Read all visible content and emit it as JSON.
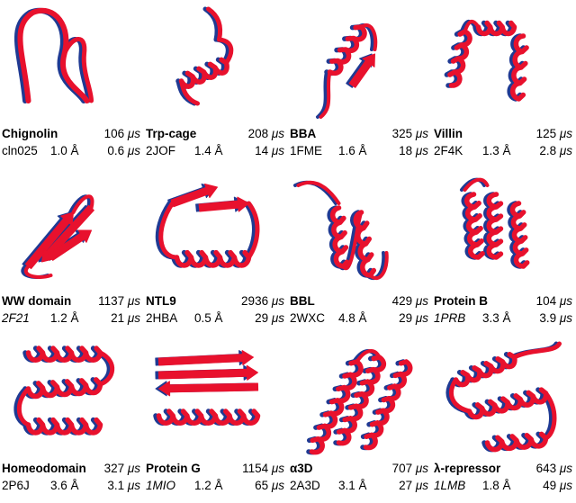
{
  "colors": {
    "simulation": "#e8112d",
    "experiment": "#1f3a93"
  },
  "proteins": [
    {
      "name": "Chignolin",
      "time": "106",
      "pdb": "cln025",
      "pdb_italic": false,
      "rmsd": "1.0 Å",
      "fold": "0.6"
    },
    {
      "name": "Trp-cage",
      "time": "208",
      "pdb": "2JOF",
      "pdb_italic": false,
      "rmsd": "1.4 Å",
      "fold": "14"
    },
    {
      "name": "BBA",
      "time": "325",
      "pdb": "1FME",
      "pdb_italic": false,
      "rmsd": "1.6 Å",
      "fold": "18"
    },
    {
      "name": "Villin",
      "time": "125",
      "pdb": "2F4K",
      "pdb_italic": false,
      "rmsd": "1.3 Å",
      "fold": "2.8"
    },
    {
      "name": "WW domain",
      "time": "1137",
      "pdb": "2F21",
      "pdb_italic": true,
      "rmsd": "1.2 Å",
      "fold": "21"
    },
    {
      "name": "NTL9",
      "time": "2936",
      "pdb": "2HBA",
      "pdb_italic": false,
      "rmsd": "0.5 Å",
      "fold": "29"
    },
    {
      "name": "BBL",
      "time": "429",
      "pdb": "2WXC",
      "pdb_italic": false,
      "rmsd": "4.8 Å",
      "fold": "29"
    },
    {
      "name": "Protein B",
      "time": "104",
      "pdb": "1PRB",
      "pdb_italic": true,
      "rmsd": "3.3 Å",
      "fold": "3.9"
    },
    {
      "name": "Homeodomain",
      "time": "327",
      "pdb": "2P6J",
      "pdb_italic": false,
      "rmsd": "3.6 Å",
      "fold": "3.1"
    },
    {
      "name": "Protein G",
      "time": "1154",
      "pdb": "1MIO",
      "pdb_italic": true,
      "rmsd": "1.2 Å",
      "fold": "65"
    },
    {
      "name": "α3D",
      "time": "707",
      "pdb": "2A3D",
      "pdb_italic": false,
      "rmsd": "3.1 Å",
      "fold": "27"
    },
    {
      "name": "λ-repressor",
      "time": "643",
      "pdb": "1LMB",
      "pdb_italic": true,
      "rmsd": "1.8 Å",
      "fold": "49"
    }
  ],
  "unit": "μs"
}
